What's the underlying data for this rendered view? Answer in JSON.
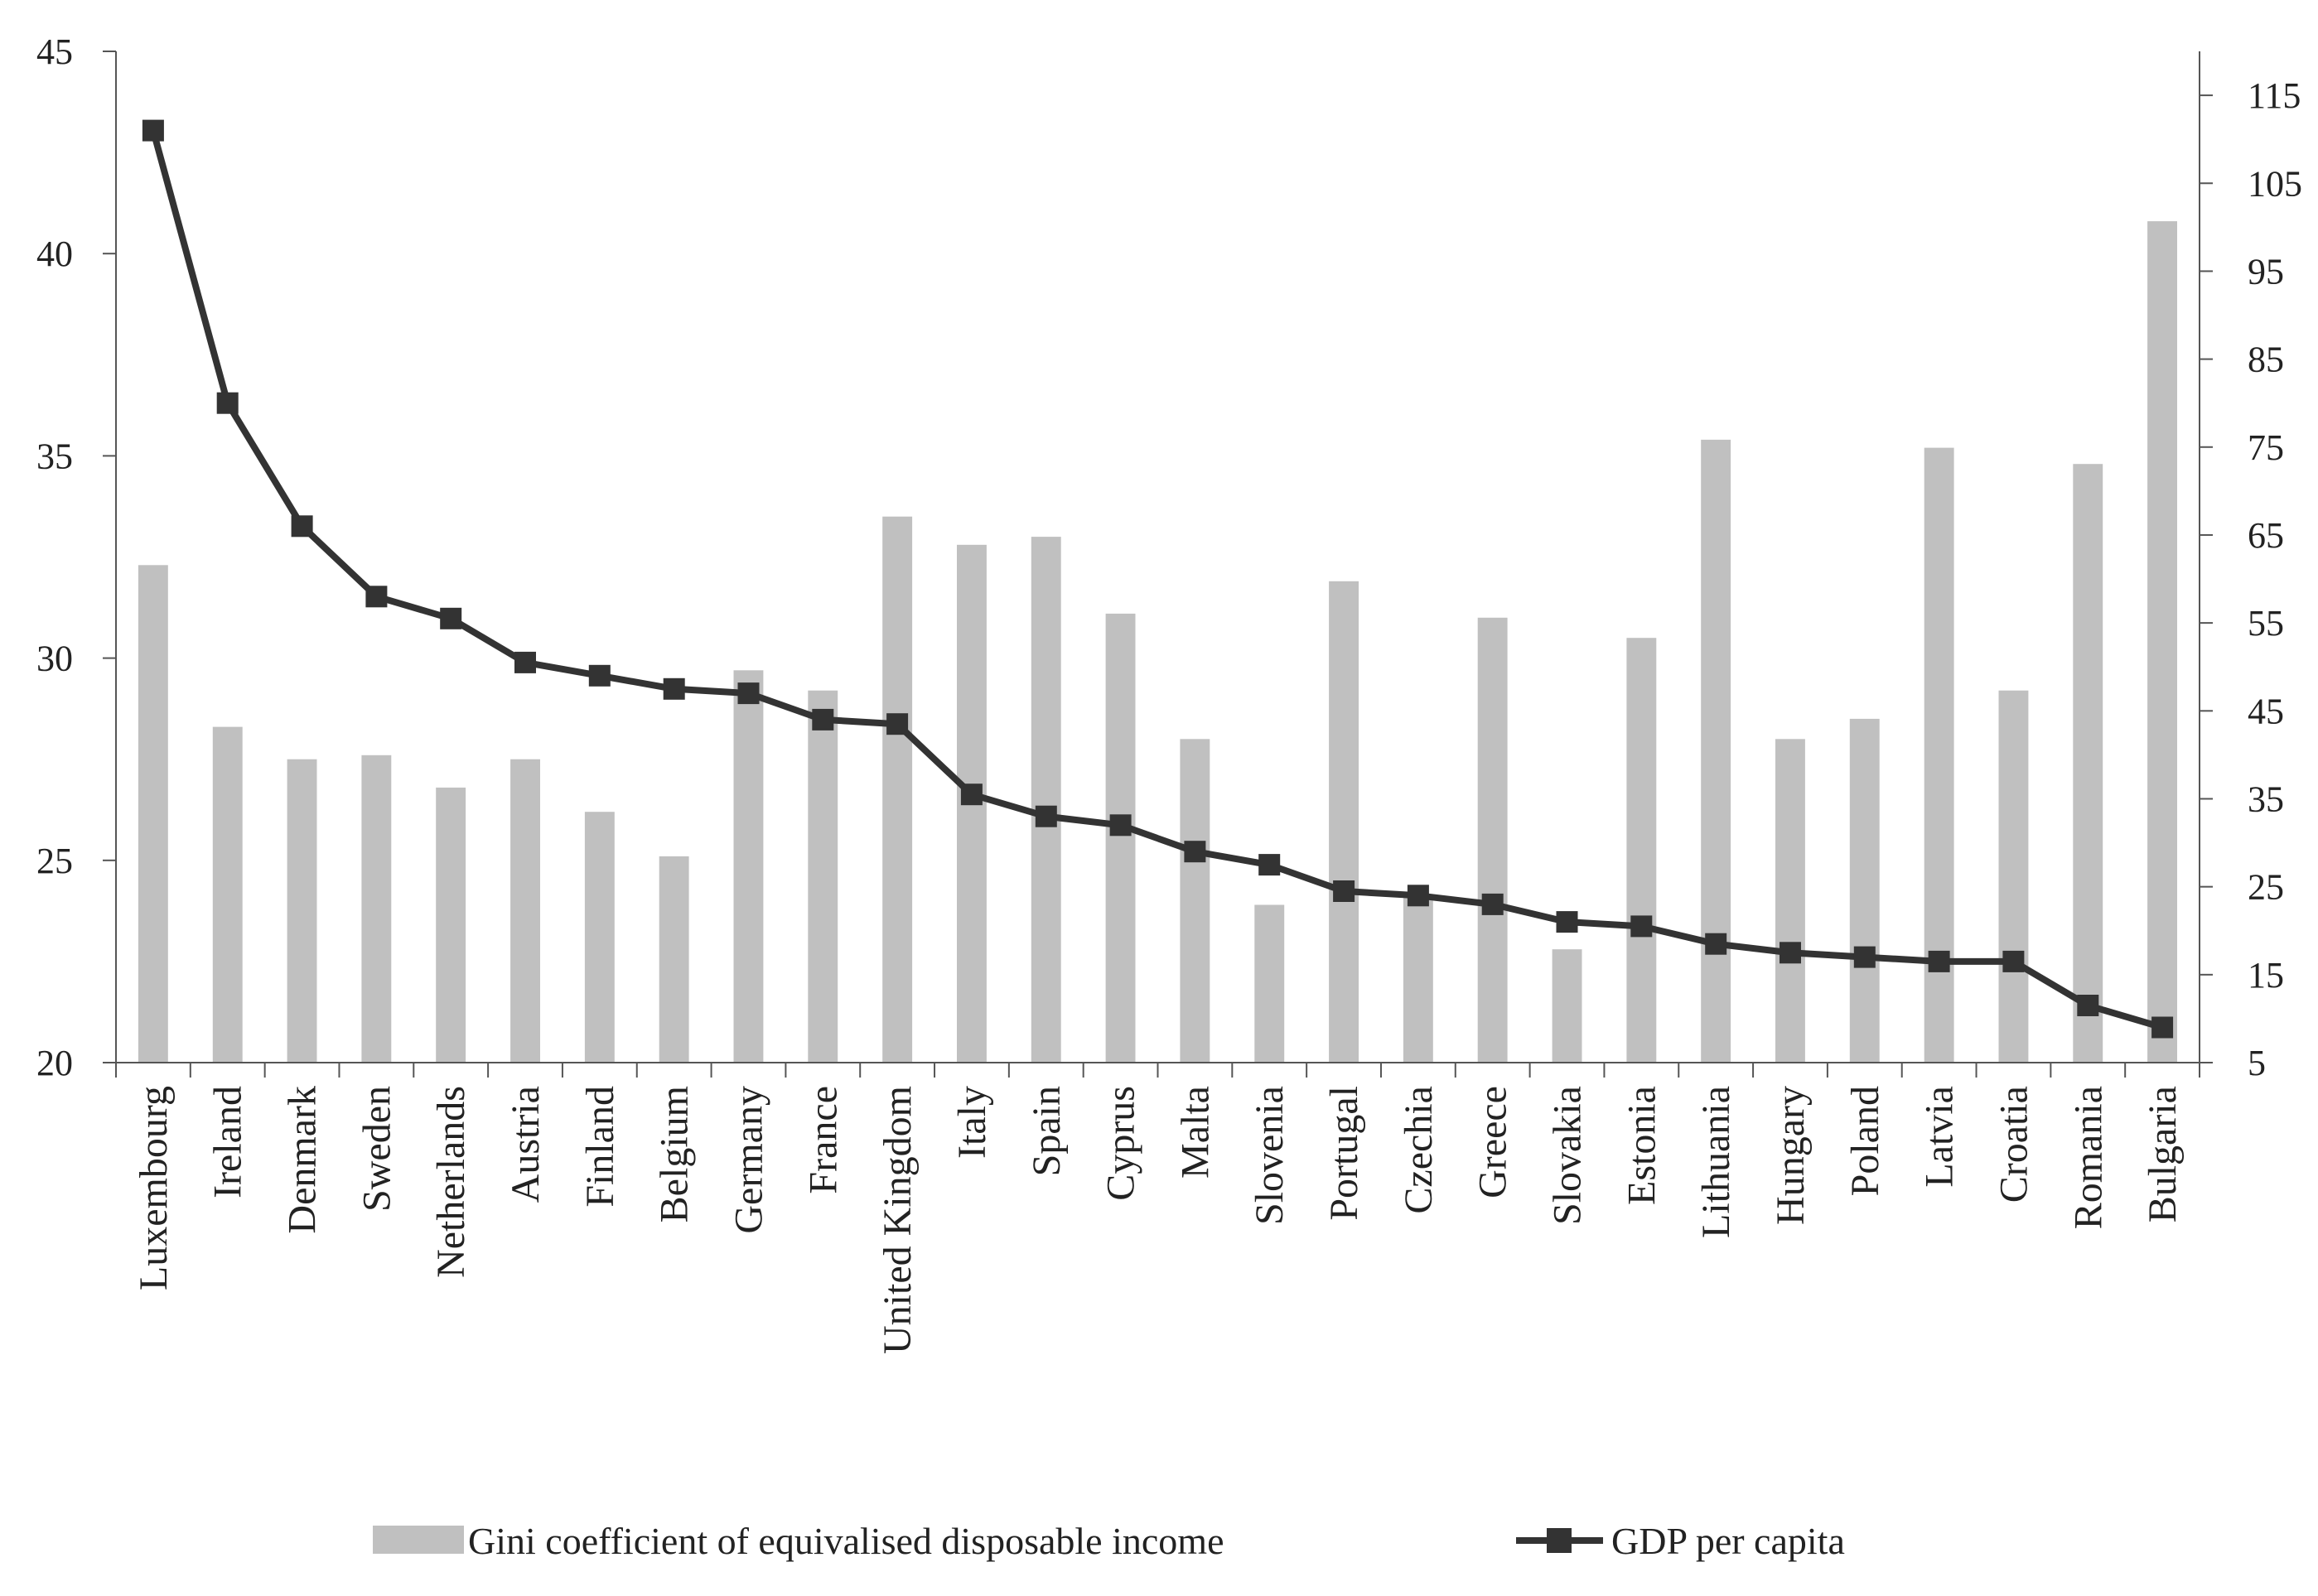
{
  "chart_data": {
    "type": "bar+line",
    "title": "",
    "xlabel": "",
    "categories": [
      "Luxembourg",
      "Ireland",
      "Denmark",
      "Sweden",
      "Netherlands",
      "Austria",
      "Finland",
      "Belgium",
      "Germany",
      "France",
      "United Kingdom",
      "Italy",
      "Spain",
      "Cyprus",
      "Malta",
      "Slovenia",
      "Portugal",
      "Czechia",
      "Greece",
      "Slovakia",
      "Estonia",
      "Lithuania",
      "Hungary",
      "Poland",
      "Latvia",
      "Croatia",
      "Romania",
      "Bulgaria"
    ],
    "series": [
      {
        "name": "Gini coefficient of equivalised disposable income",
        "type": "bar",
        "axis": "left",
        "color": "#c0c0c0",
        "values": [
          32.3,
          28.3,
          27.5,
          27.6,
          26.8,
          27.5,
          26.2,
          25.1,
          29.7,
          29.2,
          33.5,
          32.8,
          33.0,
          31.1,
          28.0,
          23.9,
          31.9,
          24.1,
          31.0,
          22.8,
          30.5,
          35.4,
          28.0,
          28.5,
          35.2,
          29.2,
          34.8,
          40.8
        ]
      },
      {
        "name": "GDP per capita",
        "type": "line",
        "axis": "right",
        "color": "#333333",
        "marker": "square",
        "values": [
          111,
          80,
          66,
          58,
          55.5,
          50.5,
          49,
          47.5,
          47,
          44,
          43.5,
          35.5,
          33,
          32,
          29,
          27.5,
          24.5,
          24,
          23,
          21,
          20.5,
          18.5,
          17.5,
          17,
          16.5,
          16.5,
          11.5,
          9
        ]
      }
    ],
    "y_left": {
      "ylim": [
        20,
        45
      ],
      "ticks": [
        "20",
        "25",
        "30",
        "35",
        "40",
        "45"
      ]
    },
    "y_right": {
      "ylim": [
        5,
        120
      ],
      "ticks": [
        "5",
        "15",
        "25",
        "35",
        "45",
        "55",
        "65",
        "75",
        "85",
        "95",
        "105",
        "115"
      ]
    },
    "legend": {
      "position": "bottom",
      "items": [
        "Gini coefficient of equivalised disposable income",
        "GDP per capita"
      ]
    }
  }
}
